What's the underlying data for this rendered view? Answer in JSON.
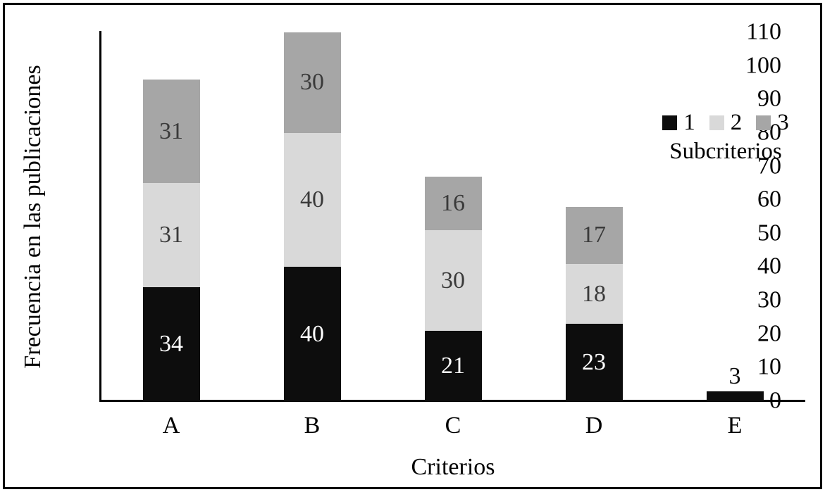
{
  "figure": {
    "background": "#ffffff",
    "border_color": "#000000"
  },
  "chart_data": {
    "type": "bar",
    "stacked": true,
    "title": "",
    "xlabel": "Criterios",
    "ylabel": "Frecuencia en las publicaciones",
    "categories": [
      "A",
      "B",
      "C",
      "D",
      "E"
    ],
    "series": [
      {
        "name": "1",
        "color": "#0d0d0d",
        "label_color": "#ffffff",
        "values": [
          34,
          40,
          21,
          23,
          3
        ]
      },
      {
        "name": "2",
        "color": "#d9d9d9",
        "label_color": "#3a3a3a",
        "values": [
          31,
          40,
          30,
          18,
          0
        ]
      },
      {
        "name": "3",
        "color": "#a6a6a6",
        "label_color": "#3a3a3a",
        "values": [
          31,
          30,
          16,
          17,
          0
        ]
      }
    ],
    "y_ticks": [
      0,
      10,
      20,
      30,
      40,
      50,
      60,
      70,
      80,
      90,
      100,
      110
    ],
    "ylim": [
      0,
      110
    ],
    "grid": false,
    "legend": {
      "title": "Subcriterios",
      "entries": [
        "1",
        "2",
        "3"
      ],
      "position": "upper-right"
    }
  }
}
